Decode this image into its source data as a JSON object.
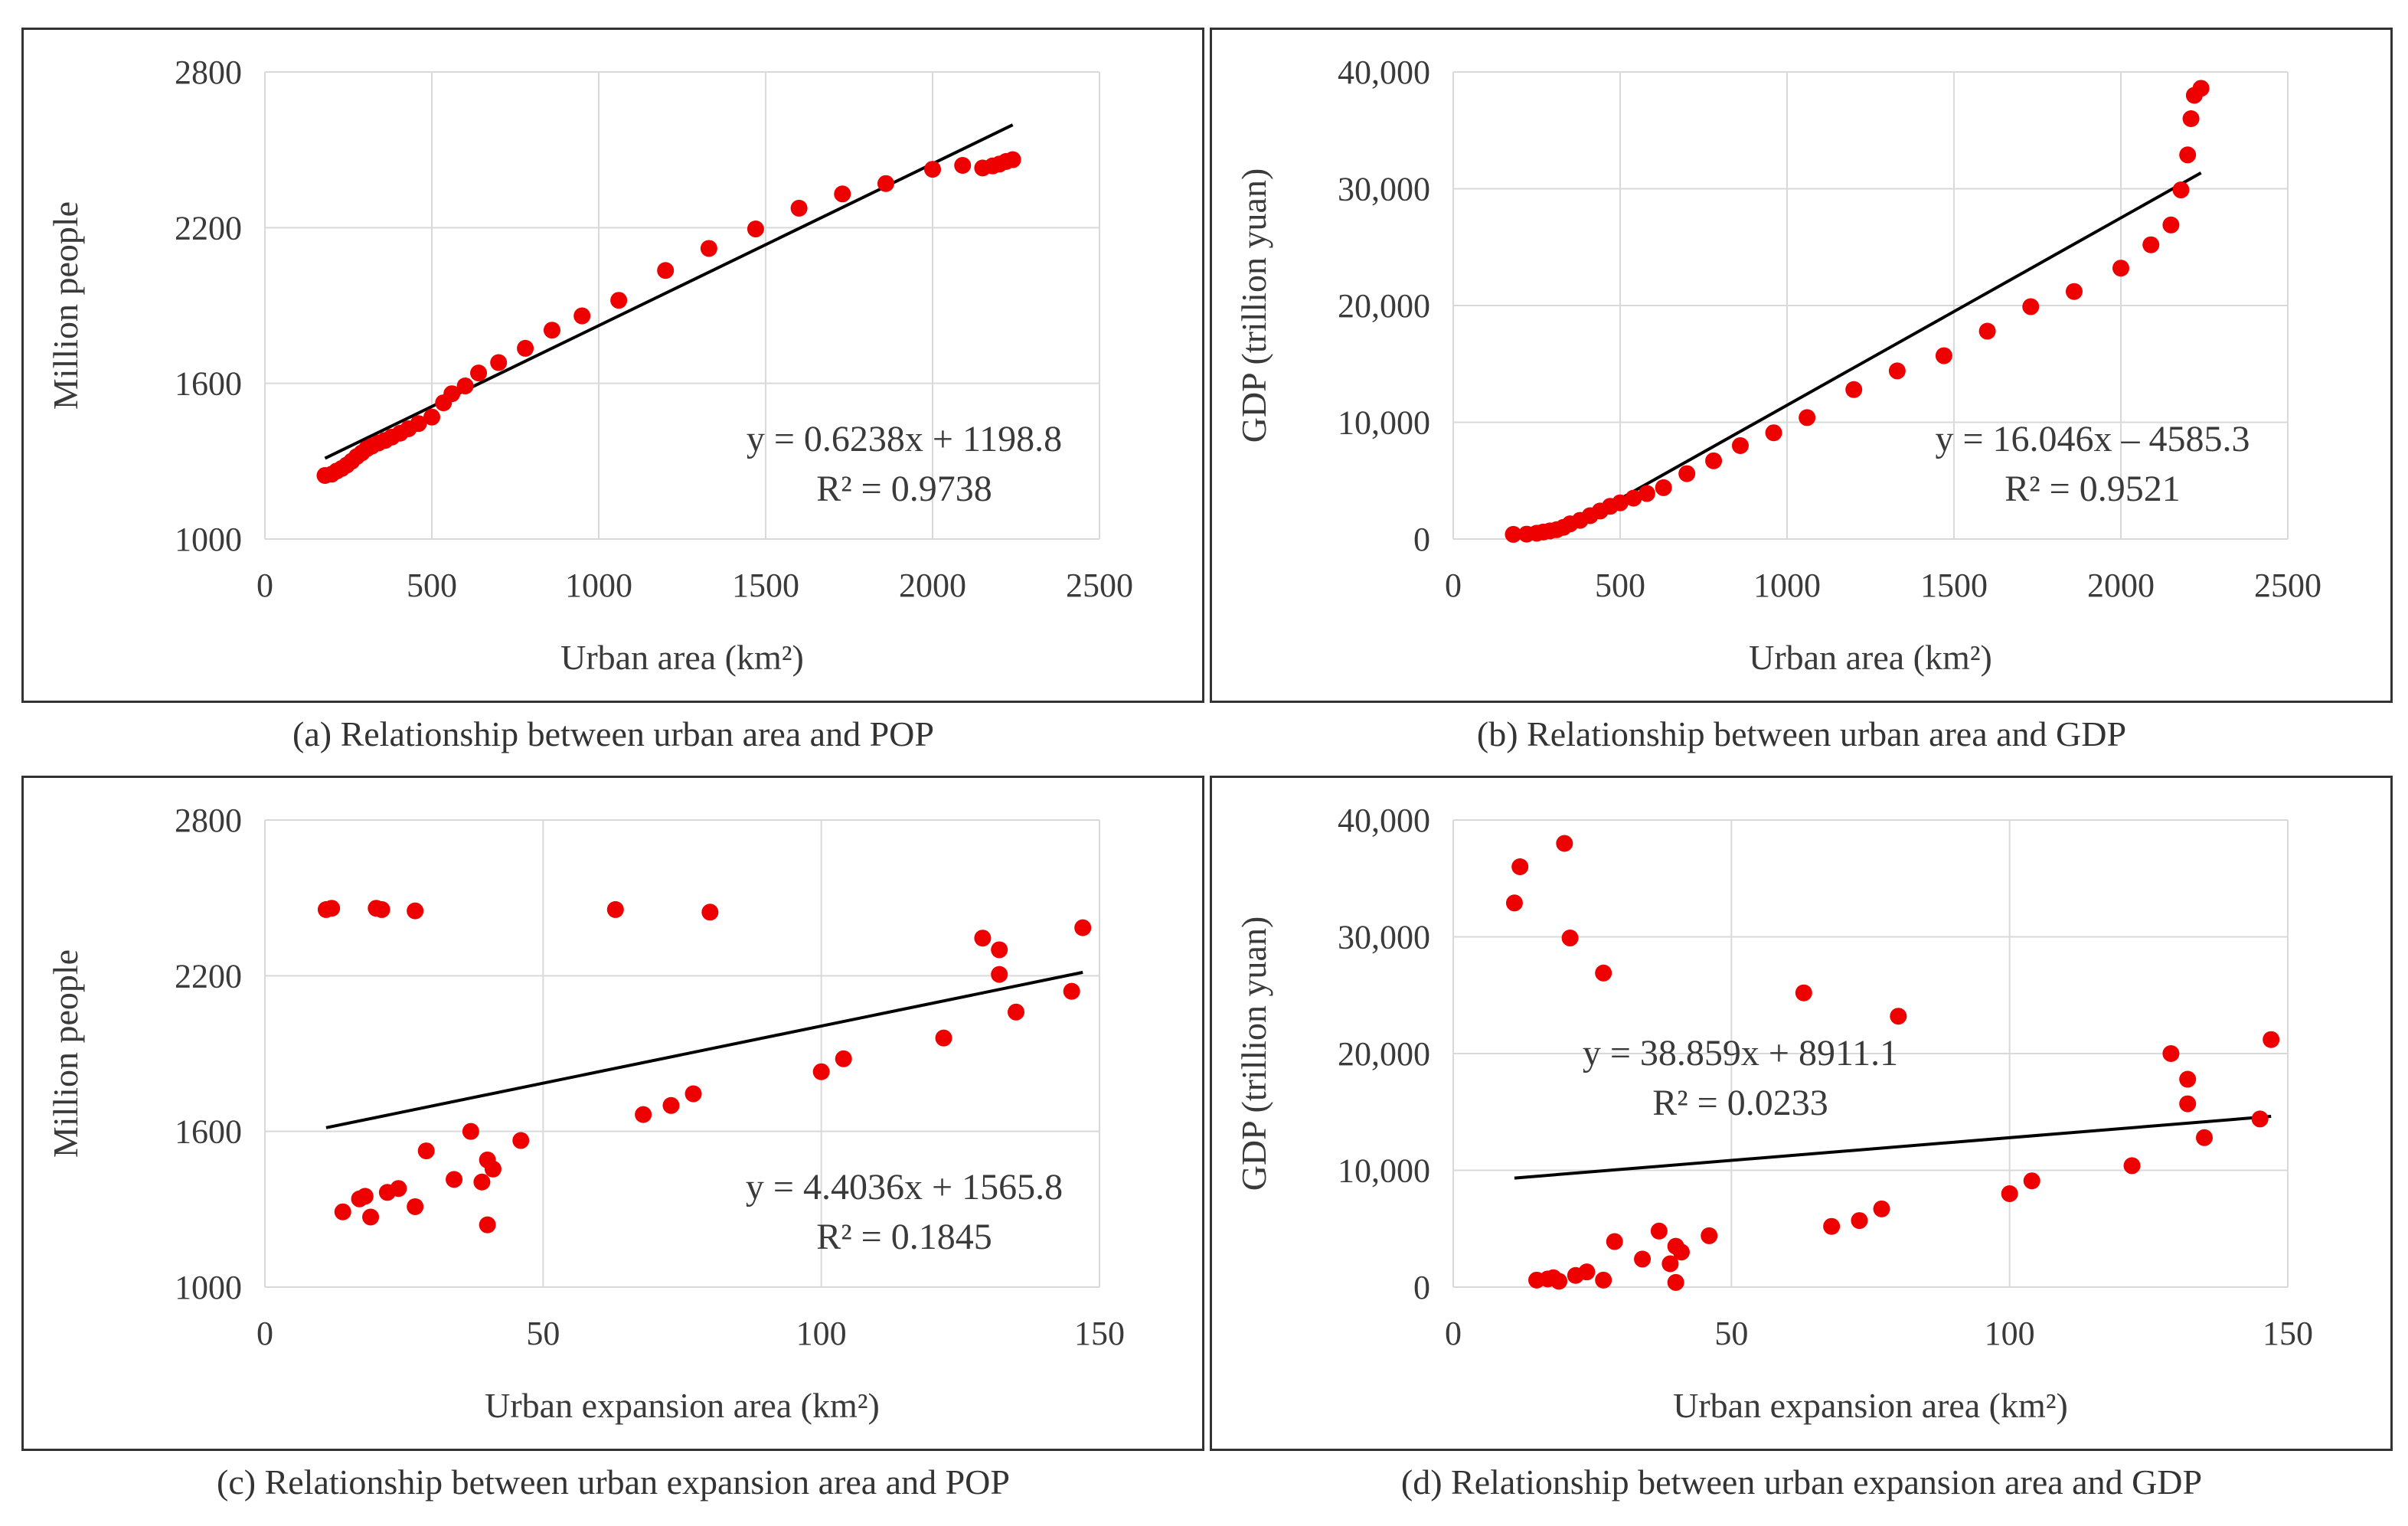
{
  "colors": {
    "point": "#ee0000",
    "trend": "#000000",
    "grid": "#d9d9d9",
    "border": "#333333"
  },
  "panels": [
    {
      "id": "a",
      "caption": "(a) Relationship between urban area and POP",
      "chart_data": {
        "type": "scatter",
        "xlabel": "Urban area (km²)",
        "ylabel": "Million people",
        "xlim": [
          0,
          2500
        ],
        "ylim": [
          1000,
          2800
        ],
        "xticks": [
          0,
          500,
          1000,
          1500,
          2000,
          2500
        ],
        "yticks": [
          1000,
          1600,
          2200,
          2800
        ],
        "ytick_labels": [
          "1000",
          "1600",
          "2200",
          "2800"
        ],
        "equation": "y = 0.6238x + 1198.8",
        "r2": "R² = 0.9738",
        "trendline": {
          "slope": 0.6238,
          "intercept": 1198.8,
          "x_range": [
            180,
            2240
          ]
        },
        "points": [
          [
            180,
            1245
          ],
          [
            200,
            1250
          ],
          [
            215,
            1262
          ],
          [
            230,
            1272
          ],
          [
            245,
            1285
          ],
          [
            260,
            1300
          ],
          [
            275,
            1318
          ],
          [
            290,
            1332
          ],
          [
            305,
            1348
          ],
          [
            320,
            1358
          ],
          [
            340,
            1370
          ],
          [
            360,
            1380
          ],
          [
            380,
            1393
          ],
          [
            405,
            1408
          ],
          [
            430,
            1425
          ],
          [
            460,
            1445
          ],
          [
            500,
            1470
          ],
          [
            535,
            1525
          ],
          [
            560,
            1560
          ],
          [
            600,
            1590
          ],
          [
            640,
            1640
          ],
          [
            700,
            1680
          ],
          [
            780,
            1735
          ],
          [
            860,
            1805
          ],
          [
            950,
            1860
          ],
          [
            1060,
            1920
          ],
          [
            1200,
            2035
          ],
          [
            1330,
            2120
          ],
          [
            1470,
            2195
          ],
          [
            1600,
            2275
          ],
          [
            1730,
            2330
          ],
          [
            1860,
            2370
          ],
          [
            2000,
            2425
          ],
          [
            2090,
            2440
          ],
          [
            2150,
            2430
          ],
          [
            2180,
            2438
          ],
          [
            2200,
            2445
          ],
          [
            2220,
            2455
          ],
          [
            2240,
            2462
          ]
        ]
      }
    },
    {
      "id": "b",
      "caption": "(b) Relationship between urban area and GDP",
      "chart_data": {
        "type": "scatter",
        "xlabel": "Urban area (km²)",
        "ylabel": "GDP (trillion yuan)",
        "xlim": [
          0,
          2500
        ],
        "ylim": [
          0,
          40000
        ],
        "xticks": [
          0,
          500,
          1000,
          1500,
          2000,
          2500
        ],
        "yticks": [
          0,
          10000,
          20000,
          30000,
          40000
        ],
        "ytick_labels": [
          "0",
          "10,000",
          "20,000",
          "30,000",
          "40,000"
        ],
        "equation": "y = 16.046x – 4585.3",
        "r2": "R² = 0.9521",
        "trendline": {
          "slope": 16.046,
          "intercept": -4585.3,
          "x_range": [
            290,
            2240
          ]
        },
        "points": [
          [
            180,
            400
          ],
          [
            220,
            420
          ],
          [
            250,
            500
          ],
          [
            270,
            600
          ],
          [
            290,
            700
          ],
          [
            310,
            800
          ],
          [
            330,
            1000
          ],
          [
            350,
            1300
          ],
          [
            380,
            1600
          ],
          [
            410,
            2000
          ],
          [
            440,
            2400
          ],
          [
            470,
            2800
          ],
          [
            500,
            3100
          ],
          [
            540,
            3500
          ],
          [
            580,
            3900
          ],
          [
            630,
            4400
          ],
          [
            700,
            5600
          ],
          [
            780,
            6700
          ],
          [
            860,
            8000
          ],
          [
            960,
            9100
          ],
          [
            1060,
            10400
          ],
          [
            1200,
            12800
          ],
          [
            1330,
            14400
          ],
          [
            1470,
            15700
          ],
          [
            1600,
            17800
          ],
          [
            1730,
            19900
          ],
          [
            1860,
            21200
          ],
          [
            2000,
            23200
          ],
          [
            2090,
            25200
          ],
          [
            2150,
            26900
          ],
          [
            2180,
            29900
          ],
          [
            2200,
            32900
          ],
          [
            2210,
            36000
          ],
          [
            2220,
            38000
          ],
          [
            2240,
            38600
          ]
        ]
      }
    },
    {
      "id": "c",
      "caption": "(c) Relationship between urban expansion area and POP",
      "chart_data": {
        "type": "scatter",
        "xlabel": "Urban expansion area (km²)",
        "ylabel": "Million people",
        "xlim": [
          0,
          150
        ],
        "ylim": [
          1000,
          2800
        ],
        "xticks": [
          0,
          50,
          100,
          150
        ],
        "yticks": [
          1000,
          1600,
          2200,
          2800
        ],
        "ytick_labels": [
          "1000",
          "1600",
          "2200",
          "2800"
        ],
        "equation": "y = 4.4036x + 1565.8",
        "r2": "R² = 0.1845",
        "trendline": {
          "slope": 4.4036,
          "intercept": 1565.8,
          "x_range": [
            11,
            147
          ]
        },
        "points": [
          [
            11,
            2455
          ],
          [
            12,
            2460
          ],
          [
            20,
            2460
          ],
          [
            21,
            2455
          ],
          [
            27,
            2450
          ],
          [
            63,
            2455
          ],
          [
            80,
            2445
          ],
          [
            129,
            2345
          ],
          [
            132,
            2300
          ],
          [
            132,
            2205
          ],
          [
            135,
            2060
          ],
          [
            145,
            2140
          ],
          [
            147,
            2385
          ],
          [
            122,
            1960
          ],
          [
            100,
            1830
          ],
          [
            104,
            1880
          ],
          [
            68,
            1665
          ],
          [
            73,
            1700
          ],
          [
            77,
            1745
          ],
          [
            14,
            1290
          ],
          [
            17,
            1340
          ],
          [
            18,
            1350
          ],
          [
            19,
            1270
          ],
          [
            22,
            1365
          ],
          [
            24,
            1380
          ],
          [
            27,
            1310
          ],
          [
            29,
            1525
          ],
          [
            34,
            1415
          ],
          [
            37,
            1600
          ],
          [
            39,
            1405
          ],
          [
            40,
            1490
          ],
          [
            41,
            1455
          ],
          [
            40,
            1240
          ],
          [
            46,
            1565
          ]
        ]
      }
    },
    {
      "id": "d",
      "caption": "(d) Relationship between urban expansion area and GDP",
      "chart_data": {
        "type": "scatter",
        "xlabel": "Urban expansion area (km²)",
        "ylabel": "GDP (trillion yuan)",
        "xlim": [
          0,
          150
        ],
        "ylim": [
          0,
          40000
        ],
        "xticks": [
          0,
          50,
          100,
          150
        ],
        "yticks": [
          0,
          10000,
          20000,
          30000,
          40000
        ],
        "ytick_labels": [
          "0",
          "10,000",
          "20,000",
          "30,000",
          "40,000"
        ],
        "equation": "y = 38.859x + 8911.1",
        "r2": "R² = 0.0233",
        "trendline": {
          "slope": 38.859,
          "intercept": 8911.1,
          "x_range": [
            11,
            147
          ]
        },
        "points": [
          [
            11,
            32900
          ],
          [
            12,
            36000
          ],
          [
            20,
            38000
          ],
          [
            21,
            29900
          ],
          [
            27,
            26900
          ],
          [
            63,
            25200
          ],
          [
            80,
            23200
          ],
          [
            129,
            20000
          ],
          [
            132,
            17800
          ],
          [
            132,
            15700
          ],
          [
            135,
            12800
          ],
          [
            145,
            14400
          ],
          [
            147,
            21200
          ],
          [
            122,
            10400
          ],
          [
            100,
            8000
          ],
          [
            104,
            9100
          ],
          [
            68,
            5200
          ],
          [
            73,
            5700
          ],
          [
            77,
            6700
          ],
          [
            15,
            600
          ],
          [
            17,
            700
          ],
          [
            18,
            800
          ],
          [
            19,
            500
          ],
          [
            22,
            1000
          ],
          [
            24,
            1300
          ],
          [
            27,
            600
          ],
          [
            29,
            3900
          ],
          [
            34,
            2400
          ],
          [
            37,
            4800
          ],
          [
            39,
            2000
          ],
          [
            40,
            3500
          ],
          [
            41,
            3000
          ],
          [
            40,
            400
          ],
          [
            46,
            4400
          ]
        ]
      }
    }
  ]
}
